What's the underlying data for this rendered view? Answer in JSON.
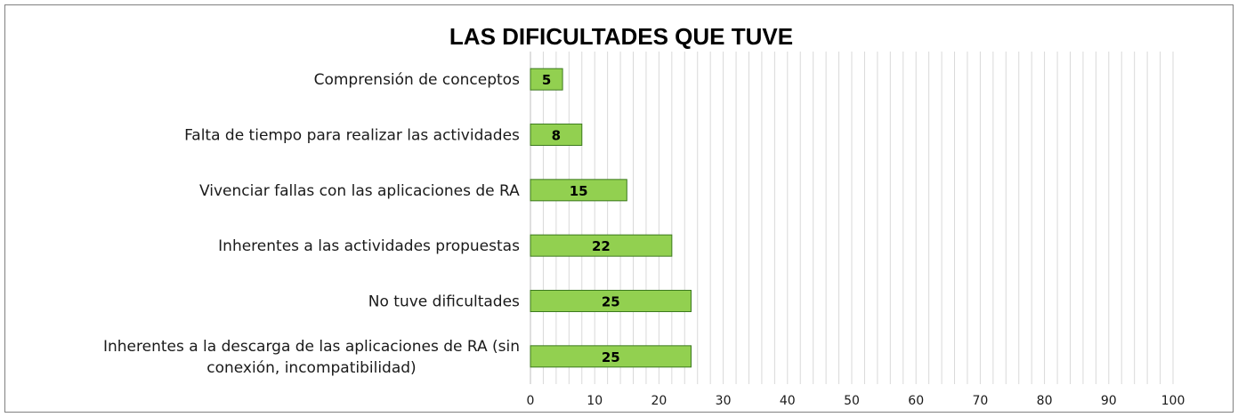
{
  "chart_data": {
    "type": "bar",
    "orientation": "horizontal",
    "title": "LAS DIFICULTADES QUE TUVE",
    "xlabel": "",
    "ylabel": "",
    "categories": [
      "Comprensión de conceptos",
      "Falta de tiempo para realizar las actividades",
      "Vivenciar fallas con las aplicaciones de RA",
      "Inherentes a las actividades propuestas",
      "No tuve dificultades",
      "Inherentes a la descarga de las aplicaciones de RA (sin conexión, incompatibilidad)"
    ],
    "category_lines": [
      [
        "Comprensión de conceptos"
      ],
      [
        "Falta de tiempo para realizar las actividades"
      ],
      [
        "Vivenciar fallas con las aplicaciones de RA"
      ],
      [
        "Inherentes a las actividades propuestas"
      ],
      [
        "No tuve dificultades"
      ],
      [
        "Inherentes a la descarga de las aplicaciones de RA (sin",
        "conexión, incompatibilidad)"
      ]
    ],
    "values": [
      5,
      8,
      15,
      22,
      25,
      25
    ],
    "xlim": [
      0,
      100
    ],
    "xticks": [
      0,
      10,
      20,
      30,
      40,
      50,
      60,
      70,
      80,
      90,
      100
    ],
    "grid": true,
    "legend": "none",
    "colors": {
      "bar_fill": "#92d050",
      "bar_stroke": "#3c7a1e"
    }
  }
}
